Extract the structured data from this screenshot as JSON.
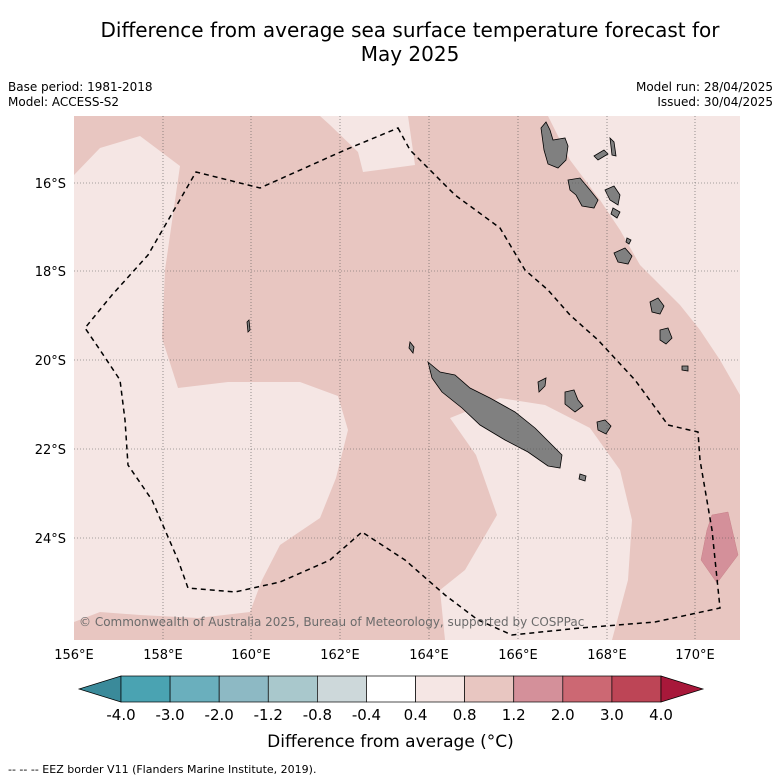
{
  "title": "Difference from average sea surface temperature forecast for",
  "title_line2": "May 2025",
  "base_period": "Base period: 1981-2018",
  "model": "Model: ACCESS-S2",
  "model_run": "Model run: 28/04/2025",
  "issued": "Issued: 30/04/2025",
  "copyright": "© Commonwealth of Australia 2025, Bureau of Meteorology, supported by COSPPac",
  "lon_ticks": [
    "156°E",
    "158°E",
    "160°E",
    "162°E",
    "164°E",
    "166°E",
    "168°E",
    "170°E"
  ],
  "lat_ticks": [
    "16°S",
    "18°S",
    "20°S",
    "22°S",
    "24°S"
  ],
  "colorbar": {
    "label": "Difference from average (°C)",
    "ticks": [
      "-4.0",
      "-3.0",
      "-2.0",
      "-1.2",
      "-0.8",
      "-0.4",
      "0.4",
      "0.8",
      "1.2",
      "2.0",
      "3.0",
      "4.0"
    ],
    "colors": [
      "#3a8a9a",
      "#4aa3b2",
      "#6aafbd",
      "#8db9c4",
      "#a9c8cc",
      "#cdd8da",
      "#ffffff",
      "#f5e6e4",
      "#e8c6c1",
      "#d4909a",
      "#cc6873",
      "#bd4556",
      "#a8183a"
    ]
  },
  "footnote": "--  --  -- EEZ border V11 (Flanders Marine Institute, 2019).",
  "colors": {
    "land": "#808080",
    "anomaly_light": "#f5e6e4",
    "anomaly_mid": "#e8c6c1",
    "anomaly_high": "#d4909a"
  }
}
